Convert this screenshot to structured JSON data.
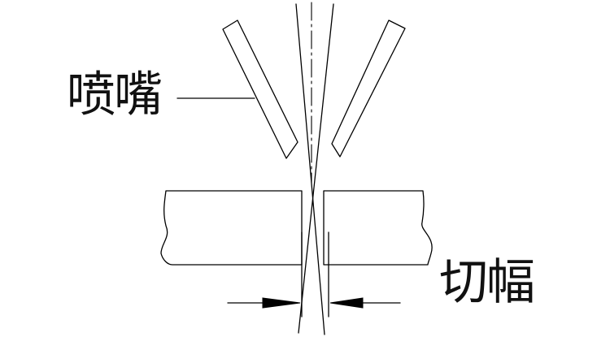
{
  "labels": {
    "nozzle": "喷嘴",
    "kerf": "切幅"
  },
  "colors": {
    "stroke": "#000000",
    "background": "#ffffff"
  }
}
